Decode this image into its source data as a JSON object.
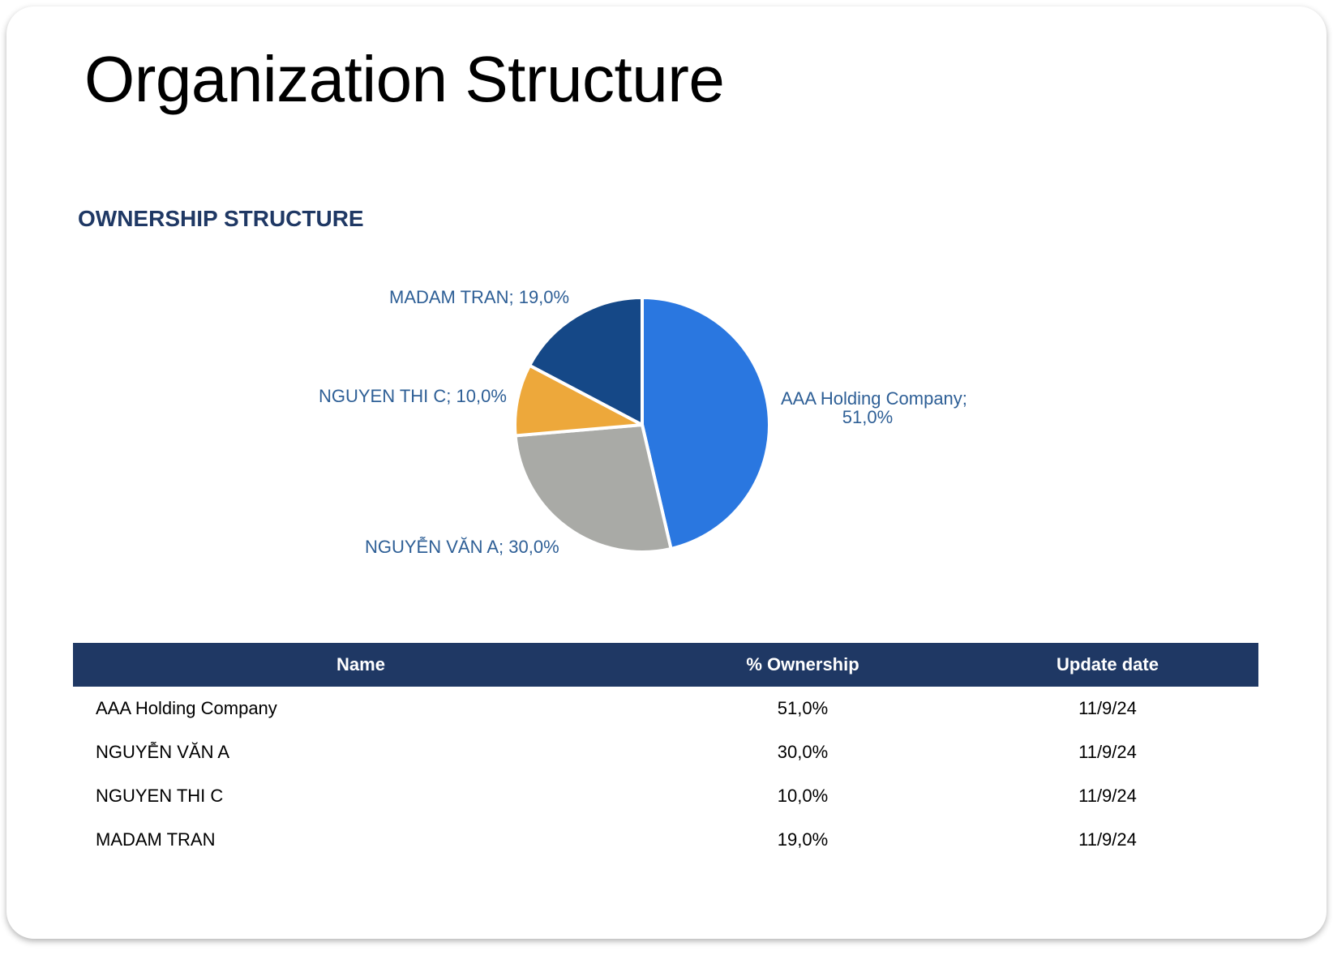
{
  "page": {
    "title": "Organization Structure",
    "section_title": "OWNERSHIP STRUCTURE"
  },
  "colors": {
    "header_bg": "#1f3864",
    "label_text": "#2e5f96",
    "aaa": "#2a77e0",
    "nguyen_van_a": "#a9aaa6",
    "nguyen_thi_c": "#eda83b",
    "madam_tran": "#154887"
  },
  "chart_data": {
    "type": "pie",
    "title": "",
    "series": [
      {
        "name": "",
        "slices": [
          {
            "label": "AAA Holding Company",
            "value": 51.0,
            "display": "51,0%",
            "color": "#2a77e0"
          },
          {
            "label": "NGUYỄN VĂN A",
            "value": 30.0,
            "display": "30,0%",
            "color": "#a9aaa6"
          },
          {
            "label": "NGUYEN THI C",
            "value": 10.0,
            "display": "10,0%",
            "color": "#eda83b"
          },
          {
            "label": "MADAM TRAN",
            "value": 19.0,
            "display": "19,0%",
            "color": "#154887"
          }
        ]
      }
    ],
    "data_labels": [
      "AAA Holding Company;",
      "51,0%",
      "NGUYỄN VĂN A; 30,0%",
      "NGUYEN THI C; 10,0%",
      "MADAM TRAN; 19,0%"
    ],
    "legend": "none"
  },
  "table": {
    "headers": [
      "Name",
      "% Ownership",
      "Update date"
    ],
    "rows": [
      {
        "name": "AAA Holding Company",
        "pct": "51,0%",
        "date": "11/9/24"
      },
      {
        "name": "NGUYỄN VĂN A",
        "pct": "30,0%",
        "date": "11/9/24"
      },
      {
        "name": "NGUYEN THI C",
        "pct": "10,0%",
        "date": "11/9/24"
      },
      {
        "name": "MADAM TRAN",
        "pct": "19,0%",
        "date": "11/9/24"
      }
    ]
  }
}
